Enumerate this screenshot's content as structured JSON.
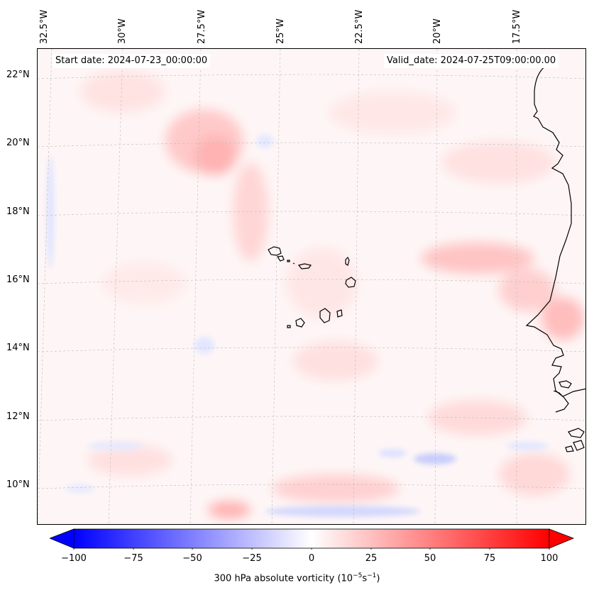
{
  "header": {
    "start_label": "Start date: 2024-07-23_00:00:00",
    "valid_label": "Valid_date: 2024-07-25T09:00:00.00"
  },
  "axes": {
    "lon_labels": [
      "32.5°W",
      "30°W",
      "27.5°W",
      "25°W",
      "22.5°W",
      "20°W",
      "17.5°W"
    ],
    "lat_labels": [
      "22°N",
      "20°N",
      "18°N",
      "16°N",
      "14°N",
      "12°N",
      "10°N"
    ]
  },
  "colorbar": {
    "ticks": [
      "−100",
      "−75",
      "−50",
      "−25",
      "0",
      "25",
      "50",
      "75",
      "100"
    ],
    "title": "300 hPa absolute vorticity (10",
    "title_exp1": "−5",
    "title_mid": "s",
    "title_exp2": "−1",
    "title_end": ")",
    "range": [
      -100,
      100
    ],
    "colormap": "bwr",
    "low_color": "#0000ff",
    "mid_color": "#ffffff",
    "high_color": "#ff0000"
  },
  "map": {
    "projection": "lambert conformal",
    "gridlines": "dashed light grey",
    "features": [
      "Cape Verde islands",
      "West African coastline (Mauritania, Senegal, Gambia, Guinea-Bissau)"
    ]
  }
}
